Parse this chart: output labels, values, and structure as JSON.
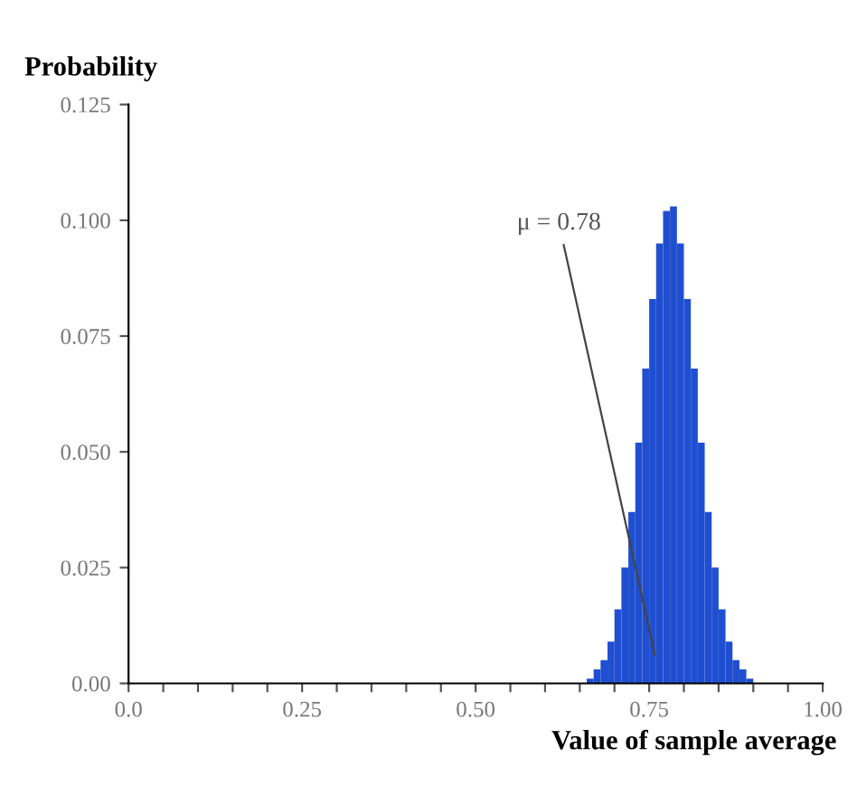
{
  "chart_data": {
    "type": "histogram",
    "ylabel": "Probability",
    "xlabel": "Value of sample average",
    "bins": [
      0.66,
      0.67,
      0.68,
      0.69,
      0.7,
      0.71,
      0.72,
      0.73,
      0.74,
      0.75,
      0.76,
      0.77,
      0.78,
      0.79,
      0.8,
      0.81,
      0.82,
      0.83,
      0.84,
      0.85,
      0.86,
      0.87,
      0.88,
      0.89,
      0.9
    ],
    "values": [
      0.001,
      0.003,
      0.005,
      0.009,
      0.016,
      0.025,
      0.037,
      0.052,
      0.068,
      0.083,
      0.095,
      0.102,
      0.103,
      0.095,
      0.083,
      0.068,
      0.052,
      0.037,
      0.025,
      0.016,
      0.009,
      0.005,
      0.003,
      0.001
    ],
    "color": "#1f4fd0",
    "xlim": [
      0,
      1.0
    ],
    "ylim": [
      0,
      0.125
    ],
    "xticks": [
      {
        "value": 0,
        "label": "0.0"
      },
      {
        "value": 0.05,
        "label": null
      },
      {
        "value": 0.1,
        "label": null
      },
      {
        "value": 0.15,
        "label": null
      },
      {
        "value": 0.2,
        "label": null
      },
      {
        "value": 0.25,
        "label": "0.25"
      },
      {
        "value": 0.3,
        "label": null
      },
      {
        "value": 0.35,
        "label": null
      },
      {
        "value": 0.4,
        "label": null
      },
      {
        "value": 0.45,
        "label": null
      },
      {
        "value": 0.5,
        "label": "0.50"
      },
      {
        "value": 0.55,
        "label": null
      },
      {
        "value": 0.6,
        "label": null
      },
      {
        "value": 0.65,
        "label": null
      },
      {
        "value": 0.7,
        "label": null
      },
      {
        "value": 0.75,
        "label": "0.75"
      },
      {
        "value": 0.8,
        "label": null
      },
      {
        "value": 0.85,
        "label": null
      },
      {
        "value": 0.9,
        "label": null
      },
      {
        "value": 0.95,
        "label": null
      },
      {
        "value": 1.0,
        "label": "1.00"
      }
    ],
    "yticks": [
      {
        "value": 0,
        "label": "0.00"
      },
      {
        "value": 0.025,
        "label": "0.025"
      },
      {
        "value": 0.05,
        "label": "0.050"
      },
      {
        "value": 0.075,
        "label": "0.075"
      },
      {
        "value": 0.1,
        "label": "0.100"
      },
      {
        "value": 0.125,
        "label": "0.125"
      }
    ],
    "annotations": [
      {
        "text": "μ = 0.78",
        "x": 0.76,
        "y": 0.005
      }
    ],
    "grid": false
  }
}
